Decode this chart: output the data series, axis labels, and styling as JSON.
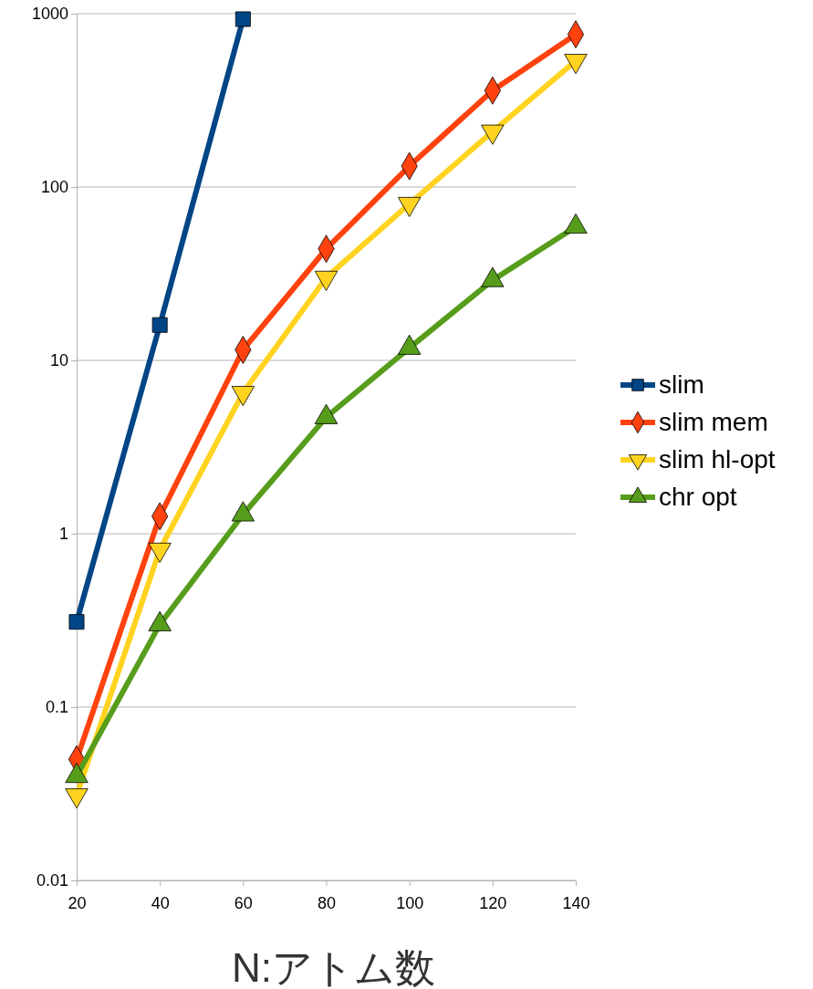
{
  "chart_data": {
    "type": "line",
    "xlabel": "N:アトム数",
    "x": [
      20,
      40,
      60,
      80,
      100,
      120,
      140
    ],
    "xlim": [
      20,
      140
    ],
    "xticks": [
      20,
      40,
      60,
      80,
      100,
      120,
      140
    ],
    "ylim": [
      0.01,
      1000
    ],
    "yticks": [
      0.01,
      0.1,
      1,
      10,
      100,
      1000
    ],
    "log": "y",
    "grid": "y",
    "legend": "right",
    "series": [
      {
        "name": "slim",
        "color": "#004586",
        "marker": "square",
        "values": [
          0.31,
          16,
          930,
          null,
          null,
          null,
          null
        ]
      },
      {
        "name": "slim mem",
        "color": "#ff420e",
        "marker": "diamond",
        "values": [
          0.05,
          1.26,
          11.5,
          44,
          132,
          360,
          760
        ]
      },
      {
        "name": "slim hl-opt",
        "color": "#ffd320",
        "marker": "triangle-down",
        "values": [
          0.031,
          0.81,
          6.5,
          30,
          80,
          209,
          535
        ]
      },
      {
        "name": "chr opt",
        "color": "#579d1c",
        "marker": "triangle",
        "values": [
          0.04,
          0.3,
          1.29,
          4.7,
          11.8,
          29,
          59
        ]
      }
    ]
  }
}
